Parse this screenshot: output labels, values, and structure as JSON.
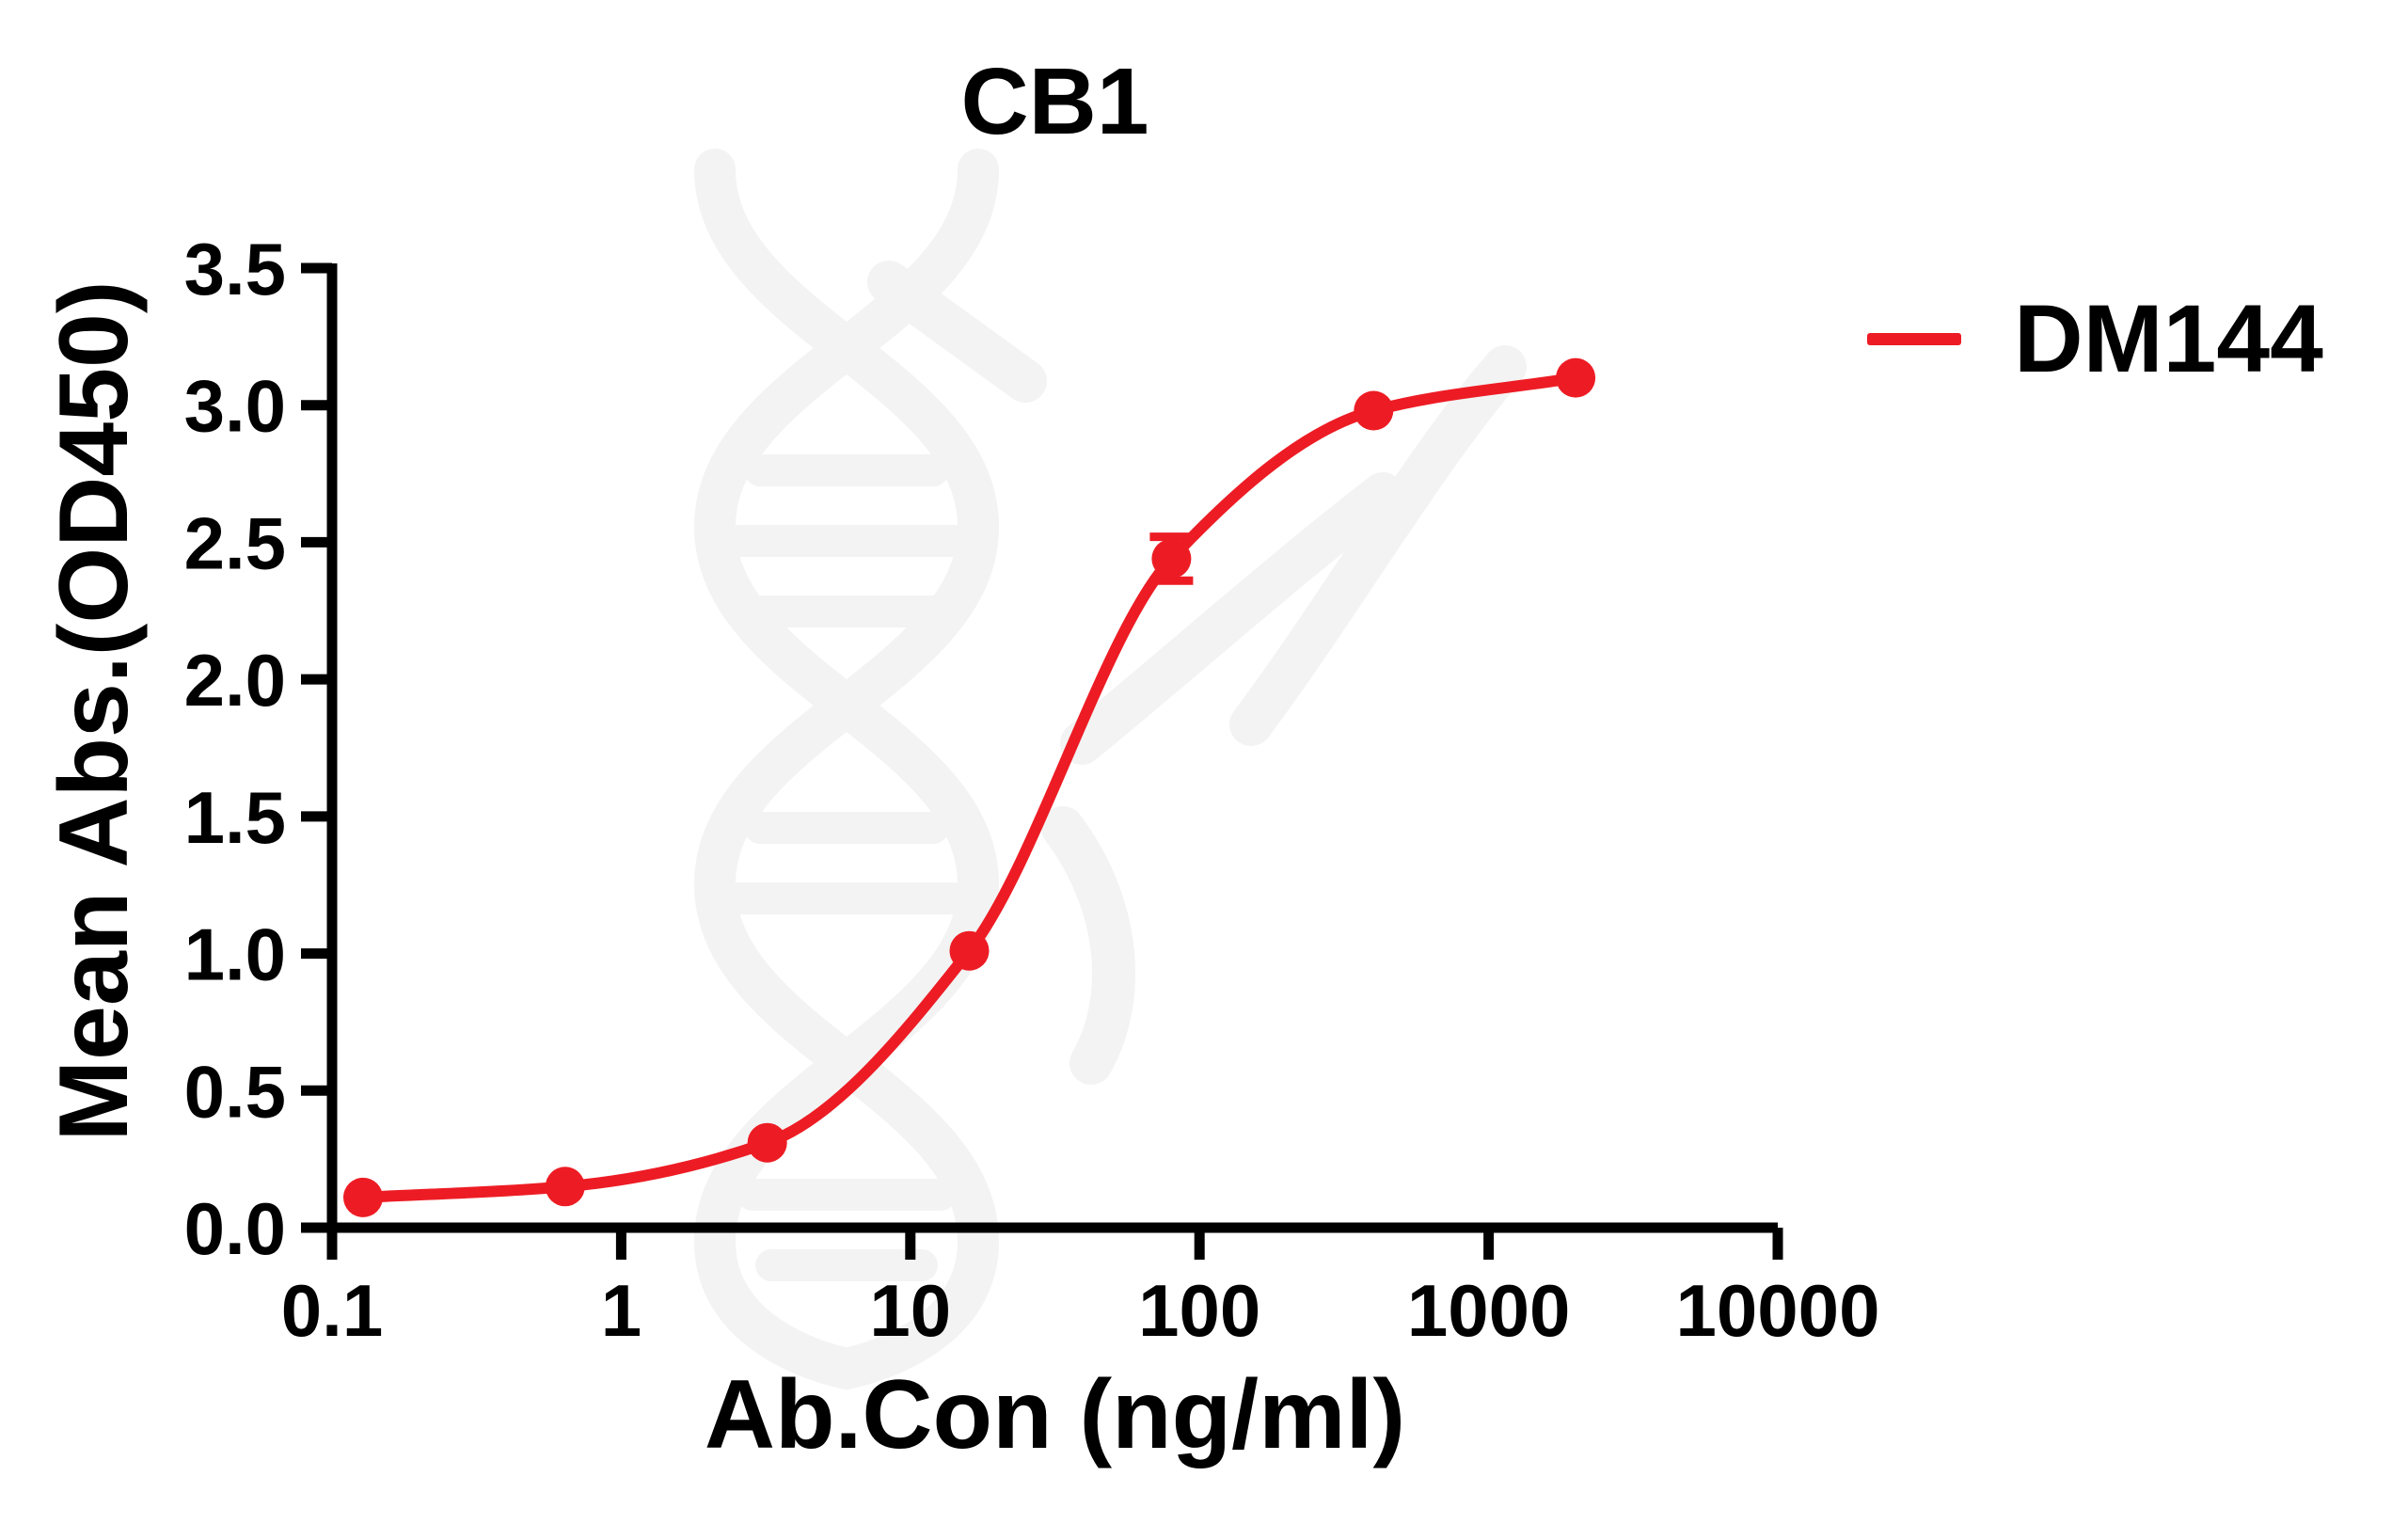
{
  "title": "CB1",
  "axes": {
    "x": {
      "label": "Ab.Con (ng/ml)",
      "scale": "log10",
      "ticks": [
        {
          "value": 0.1,
          "label": "0.1"
        },
        {
          "value": 1,
          "label": "1"
        },
        {
          "value": 10,
          "label": "10"
        },
        {
          "value": 100,
          "label": "100"
        },
        {
          "value": 1000,
          "label": "1000"
        },
        {
          "value": 10000,
          "label": "10000"
        }
      ]
    },
    "y": {
      "label": "Mean Abs.(OD450)",
      "scale": "linear",
      "ticks": [
        {
          "value": 0.0,
          "label": "0.0"
        },
        {
          "value": 0.5,
          "label": "0.5"
        },
        {
          "value": 1.0,
          "label": "1.0"
        },
        {
          "value": 1.5,
          "label": "1.5"
        },
        {
          "value": 2.0,
          "label": "2.0"
        },
        {
          "value": 2.5,
          "label": "2.5"
        },
        {
          "value": 3.0,
          "label": "3.0"
        },
        {
          "value": 3.5,
          "label": "3.5"
        }
      ]
    }
  },
  "legend": {
    "series_label": "DM144",
    "position": "right-top"
  },
  "colors": {
    "series": "#ed1c24",
    "axis": "#000000",
    "text": "#000000",
    "watermark": "#f3f3f3",
    "background": "#ffffff"
  },
  "chart_data": {
    "type": "line",
    "title": "CB1",
    "xlabel": "Ab.Con (ng/ml)",
    "ylabel": "Mean Abs.(OD450)",
    "x_scale": "log10",
    "xlim": [
      0.1,
      10000
    ],
    "ylim": [
      0.0,
      3.5
    ],
    "grid": false,
    "legend_position": "right-top",
    "series": [
      {
        "name": "DM144",
        "color": "#ed1c24",
        "marker": "circle",
        "x": [
          0.128,
          0.64,
          3.2,
          16,
          80,
          400,
          2000
        ],
        "y": [
          0.11,
          0.15,
          0.31,
          1.01,
          2.44,
          2.98,
          3.1
        ],
        "y_err": [
          0,
          0,
          0,
          0,
          0.08,
          0,
          0
        ]
      }
    ]
  }
}
